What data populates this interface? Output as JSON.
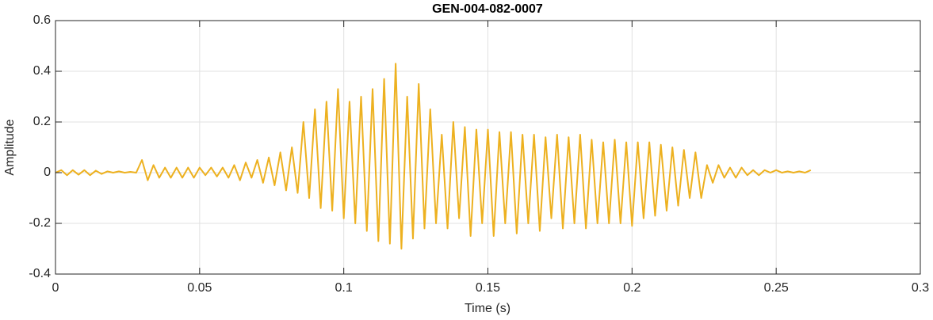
{
  "chart_data": {
    "type": "line",
    "title": "GEN-004-082-0007",
    "xlabel": "Time (s)",
    "ylabel": "Amplitude",
    "xlim": [
      0,
      0.3
    ],
    "ylim": [
      -0.4,
      0.6
    ],
    "xticks": [
      0,
      0.05,
      0.1,
      0.15,
      0.2,
      0.25,
      0.3
    ],
    "yticks": [
      -0.4,
      -0.2,
      0,
      0.2,
      0.4,
      0.6
    ],
    "grid": true,
    "x": [
      0,
      0.002,
      0.004,
      0.006,
      0.008,
      0.01,
      0.012,
      0.014,
      0.016,
      0.018,
      0.02,
      0.022,
      0.024,
      0.026,
      0.028,
      0.03,
      0.032,
      0.034,
      0.036,
      0.038,
      0.04,
      0.042,
      0.044,
      0.046,
      0.048,
      0.05,
      0.052,
      0.054,
      0.056,
      0.058,
      0.06,
      0.062,
      0.064,
      0.066,
      0.068,
      0.07,
      0.072,
      0.074,
      0.076,
      0.078,
      0.08,
      0.082,
      0.084,
      0.086,
      0.088,
      0.09,
      0.092,
      0.094,
      0.096,
      0.098,
      0.1,
      0.102,
      0.104,
      0.106,
      0.108,
      0.11,
      0.112,
      0.114,
      0.116,
      0.118,
      0.12,
      0.122,
      0.124,
      0.126,
      0.128,
      0.13,
      0.132,
      0.134,
      0.136,
      0.138,
      0.14,
      0.142,
      0.144,
      0.146,
      0.148,
      0.15,
      0.152,
      0.154,
      0.156,
      0.158,
      0.16,
      0.162,
      0.164,
      0.166,
      0.168,
      0.17,
      0.172,
      0.174,
      0.176,
      0.178,
      0.18,
      0.182,
      0.184,
      0.186,
      0.188,
      0.19,
      0.192,
      0.194,
      0.196,
      0.198,
      0.2,
      0.202,
      0.204,
      0.206,
      0.208,
      0.21,
      0.212,
      0.214,
      0.216,
      0.218,
      0.22,
      0.222,
      0.224,
      0.226,
      0.228,
      0.23,
      0.232,
      0.234,
      0.236,
      0.238,
      0.24,
      0.242,
      0.244,
      0.246,
      0.248,
      0.25,
      0.252,
      0.254,
      0.256,
      0.258,
      0.26,
      0.262
    ],
    "series": [
      {
        "color": "#EDB120",
        "values": [
          0,
          0.01,
          -0.01,
          0.01,
          -0.008,
          0.01,
          -0.01,
          0.008,
          -0.005,
          0.005,
          0,
          0.005,
          0,
          0.003,
          0,
          0.05,
          -0.03,
          0.03,
          -0.02,
          0.02,
          -0.02,
          0.02,
          -0.02,
          0.02,
          -0.02,
          0.02,
          -0.01,
          0.02,
          -0.015,
          0.02,
          -0.02,
          0.03,
          -0.03,
          0.04,
          -0.02,
          0.05,
          -0.04,
          0.06,
          -0.05,
          0.08,
          -0.07,
          0.1,
          -0.08,
          0.2,
          -0.1,
          0.25,
          -0.14,
          0.28,
          -0.15,
          0.33,
          -0.18,
          0.28,
          -0.2,
          0.3,
          -0.23,
          0.33,
          -0.27,
          0.37,
          -0.28,
          0.43,
          -0.3,
          0.3,
          -0.26,
          0.35,
          -0.22,
          0.25,
          -0.2,
          0.15,
          -0.22,
          0.2,
          -0.18,
          0.18,
          -0.25,
          0.17,
          -0.2,
          0.17,
          -0.25,
          0.16,
          -0.2,
          0.16,
          -0.24,
          0.15,
          -0.2,
          0.15,
          -0.23,
          0.14,
          -0.18,
          0.15,
          -0.22,
          0.14,
          -0.2,
          0.15,
          -0.22,
          0.13,
          -0.2,
          0.12,
          -0.2,
          0.13,
          -0.2,
          0.12,
          -0.21,
          0.12,
          -0.18,
          0.12,
          -0.17,
          0.11,
          -0.15,
          0.1,
          -0.13,
          0.09,
          -0.1,
          0.08,
          -0.1,
          0.03,
          -0.04,
          0.03,
          -0.02,
          0.02,
          -0.02,
          0.02,
          -0.01,
          0.01,
          -0.01,
          0.01,
          0,
          0.01,
          0,
          0.005,
          0,
          0.005,
          0,
          0.01
        ]
      }
    ]
  }
}
